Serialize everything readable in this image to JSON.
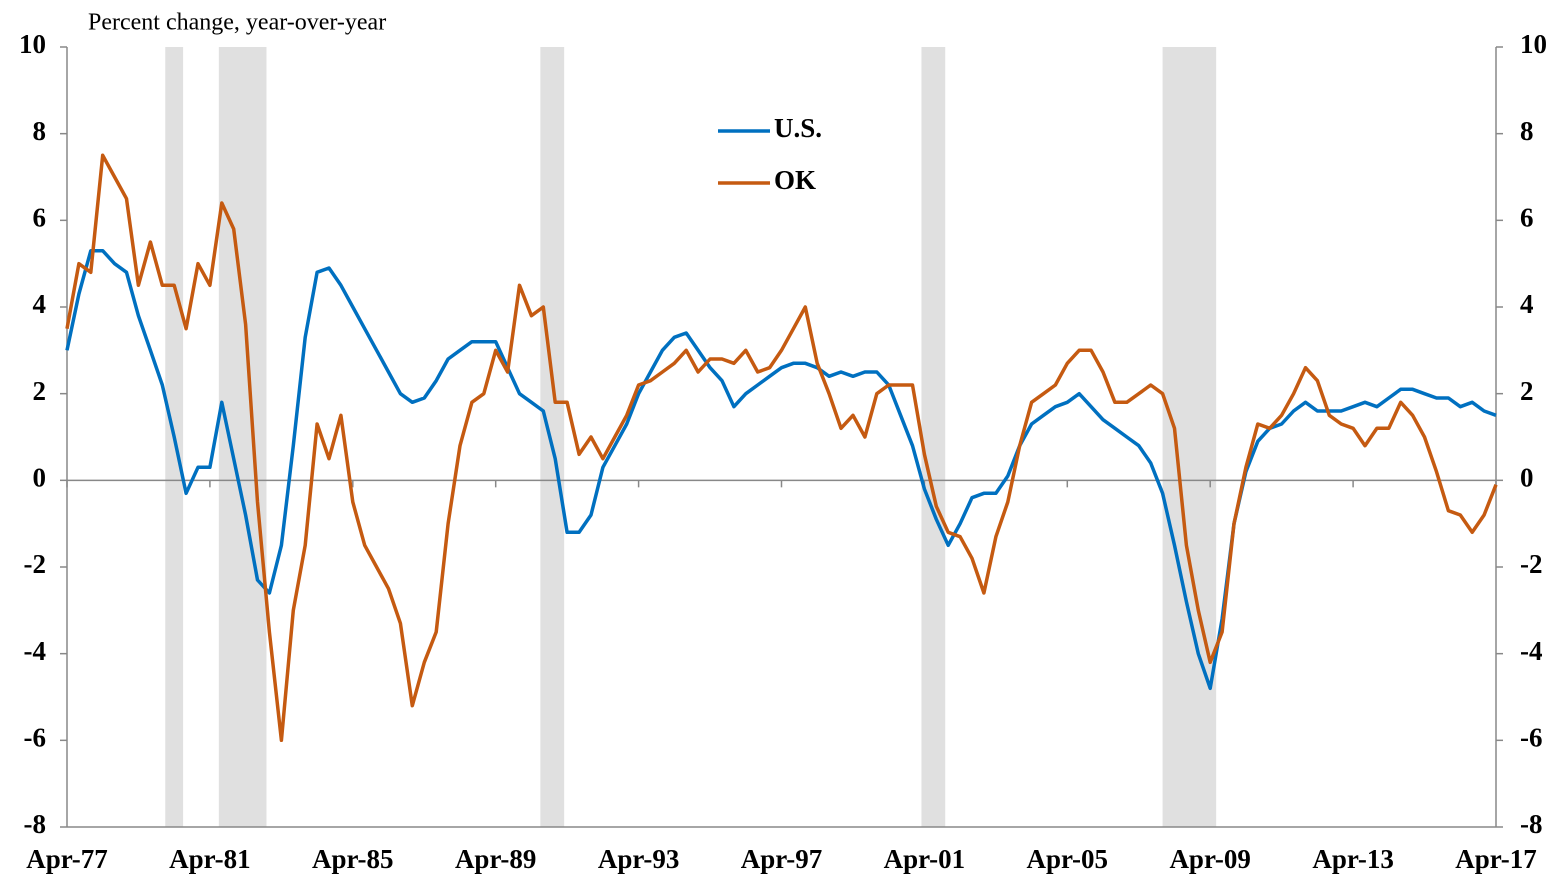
{
  "chart_data": {
    "type": "line",
    "title": "Percent change,  year-over-year",
    "x": [
      "1977-04",
      "1977-08",
      "1977-12",
      "1978-04",
      "1978-08",
      "1978-12",
      "1979-04",
      "1979-08",
      "1979-12",
      "1980-04",
      "1980-08",
      "1980-12",
      "1981-04",
      "1981-08",
      "1981-12",
      "1982-04",
      "1982-08",
      "1982-12",
      "1983-04",
      "1983-08",
      "1983-12",
      "1984-04",
      "1984-08",
      "1984-12",
      "1985-04",
      "1985-08",
      "1985-12",
      "1986-04",
      "1986-08",
      "1986-12",
      "1987-04",
      "1987-08",
      "1987-12",
      "1988-04",
      "1988-08",
      "1988-12",
      "1989-04",
      "1989-08",
      "1989-12",
      "1990-04",
      "1990-08",
      "1990-12",
      "1991-04",
      "1991-08",
      "1991-12",
      "1992-04",
      "1992-08",
      "1992-12",
      "1993-04",
      "1993-08",
      "1993-12",
      "1994-04",
      "1994-08",
      "1994-12",
      "1995-04",
      "1995-08",
      "1995-12",
      "1996-04",
      "1996-08",
      "1996-12",
      "1997-04",
      "1997-08",
      "1997-12",
      "1998-04",
      "1998-08",
      "1998-12",
      "1999-04",
      "1999-08",
      "1999-12",
      "2000-04",
      "2000-08",
      "2000-12",
      "2001-04",
      "2001-08",
      "2001-12",
      "2002-04",
      "2002-08",
      "2002-12",
      "2003-04",
      "2003-08",
      "2003-12",
      "2004-04",
      "2004-08",
      "2004-12",
      "2005-04",
      "2005-08",
      "2005-12",
      "2006-04",
      "2006-08",
      "2006-12",
      "2007-04",
      "2007-08",
      "2007-12",
      "2008-04",
      "2008-08",
      "2008-12",
      "2009-04",
      "2009-08",
      "2009-12",
      "2010-04",
      "2010-08",
      "2010-12",
      "2011-04",
      "2011-08",
      "2011-12",
      "2012-04",
      "2012-08",
      "2012-12",
      "2013-04",
      "2013-08",
      "2013-12",
      "2014-04",
      "2014-08",
      "2014-12",
      "2015-04",
      "2015-08",
      "2015-12",
      "2016-04",
      "2016-08",
      "2016-12",
      "2017-04"
    ],
    "series": [
      {
        "name": "U.S.",
        "color": "#0070C0",
        "values": [
          3.0,
          4.3,
          5.3,
          5.3,
          5.0,
          4.8,
          3.8,
          3.0,
          2.2,
          1.0,
          -0.3,
          0.3,
          0.3,
          1.8,
          0.5,
          -0.8,
          -2.3,
          -2.6,
          -1.5,
          0.8,
          3.3,
          4.8,
          4.9,
          4.5,
          4.0,
          3.5,
          3.0,
          2.5,
          2.0,
          1.8,
          1.9,
          2.3,
          2.8,
          3.0,
          3.2,
          3.2,
          3.2,
          2.6,
          2.0,
          1.8,
          1.6,
          0.5,
          -1.2,
          -1.2,
          -0.8,
          0.3,
          0.8,
          1.3,
          2.0,
          2.5,
          3.0,
          3.3,
          3.4,
          3.0,
          2.6,
          2.3,
          1.7,
          2.0,
          2.2,
          2.4,
          2.6,
          2.7,
          2.7,
          2.6,
          2.4,
          2.5,
          2.4,
          2.5,
          2.5,
          2.2,
          1.5,
          0.8,
          -0.2,
          -0.9,
          -1.5,
          -1.0,
          -0.4,
          -0.3,
          -0.3,
          0.1,
          0.8,
          1.3,
          1.5,
          1.7,
          1.8,
          2.0,
          1.7,
          1.4,
          1.2,
          1.0,
          0.8,
          0.4,
          -0.3,
          -1.5,
          -2.8,
          -4.0,
          -4.8,
          -3.2,
          -1.0,
          0.2,
          0.9,
          1.2,
          1.3,
          1.6,
          1.8,
          1.6,
          1.6,
          1.6,
          1.7,
          1.8,
          1.7,
          1.9,
          2.1,
          2.1,
          2.0,
          1.9,
          1.9,
          1.7,
          1.8,
          1.6,
          1.5
        ]
      },
      {
        "name": "OK",
        "color": "#C55A11",
        "values": [
          3.5,
          5.0,
          4.8,
          7.5,
          7.0,
          6.5,
          4.5,
          5.5,
          4.5,
          4.5,
          3.5,
          5.0,
          4.5,
          6.4,
          5.8,
          3.6,
          -0.5,
          -3.5,
          -6.0,
          -3.0,
          -1.5,
          1.3,
          0.5,
          1.5,
          -0.5,
          -1.5,
          -2.0,
          -2.5,
          -3.3,
          -5.2,
          -4.2,
          -3.5,
          -1.0,
          0.8,
          1.8,
          2.0,
          3.0,
          2.5,
          4.5,
          3.8,
          4.0,
          1.8,
          1.8,
          0.6,
          1.0,
          0.5,
          1.0,
          1.5,
          2.2,
          2.3,
          2.5,
          2.7,
          3.0,
          2.5,
          2.8,
          2.8,
          2.7,
          3.0,
          2.5,
          2.6,
          3.0,
          3.5,
          4.0,
          2.7,
          2.0,
          1.2,
          1.5,
          1.0,
          2.0,
          2.2,
          2.2,
          2.2,
          0.6,
          -0.6,
          -1.2,
          -1.3,
          -1.8,
          -2.6,
          -1.3,
          -0.5,
          0.8,
          1.8,
          2.0,
          2.2,
          2.7,
          3.0,
          3.0,
          2.5,
          1.8,
          1.8,
          2.0,
          2.2,
          2.0,
          1.2,
          -1.5,
          -3.0,
          -4.2,
          -3.5,
          -1.0,
          0.3,
          1.3,
          1.2,
          1.5,
          2.0,
          2.6,
          2.3,
          1.5,
          1.3,
          1.2,
          0.8,
          1.2,
          1.2,
          1.8,
          1.5,
          1.0,
          0.2,
          -0.7,
          -0.8,
          -1.2,
          -0.8,
          -0.1
        ]
      }
    ],
    "recessions": [
      [
        "1980-01",
        "1980-07"
      ],
      [
        "1981-07",
        "1982-11"
      ],
      [
        "1990-07",
        "1991-03"
      ],
      [
        "2001-03",
        "2001-11"
      ],
      [
        "2007-12",
        "2009-06"
      ]
    ],
    "xlim": [
      "1977-04",
      "2017-04"
    ],
    "xticks": [
      {
        "value": "1977-04",
        "label": "Apr-77"
      },
      {
        "value": "1981-04",
        "label": "Apr-81"
      },
      {
        "value": "1985-04",
        "label": "Apr-85"
      },
      {
        "value": "1989-04",
        "label": "Apr-89"
      },
      {
        "value": "1993-04",
        "label": "Apr-93"
      },
      {
        "value": "1997-04",
        "label": "Apr-97"
      },
      {
        "value": "2001-04",
        "label": "Apr-01"
      },
      {
        "value": "2005-04",
        "label": "Apr-05"
      },
      {
        "value": "2009-04",
        "label": "Apr-09"
      },
      {
        "value": "2013-04",
        "label": "Apr-13"
      },
      {
        "value": "2017-04",
        "label": "Apr-17"
      }
    ],
    "ylim": [
      -8,
      10
    ],
    "yticks": [
      -8,
      -6,
      -4,
      -2,
      0,
      2,
      4,
      6,
      8,
      10
    ],
    "y2lim": [
      -8,
      10
    ],
    "y2ticks": [
      -8,
      -6,
      -4,
      -2,
      0,
      2,
      4,
      6,
      8,
      10
    ],
    "recession_color": "#e0e0e0"
  }
}
